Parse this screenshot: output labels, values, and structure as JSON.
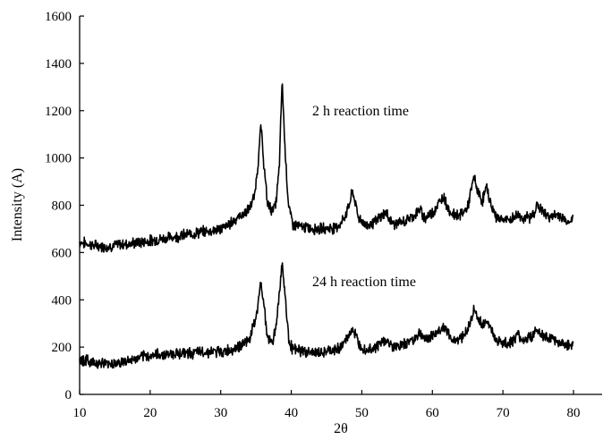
{
  "chart_data": {
    "type": "line",
    "xlabel": "2θ",
    "ylabel": "Intensity (A)",
    "xlim": [
      10,
      84
    ],
    "ylim": [
      0,
      1600
    ],
    "x_ticks": [
      10,
      20,
      30,
      40,
      50,
      60,
      70,
      80
    ],
    "y_ticks": [
      0,
      200,
      400,
      600,
      800,
      1000,
      1200,
      1400,
      1600
    ],
    "grid": false,
    "legend": "none",
    "line_color": "#000000",
    "annotations": [
      {
        "text": "2 h reaction time",
        "x": 53,
        "y": 1180
      },
      {
        "text": "24 h reaction time",
        "x": 53,
        "y": 480
      }
    ],
    "series": [
      {
        "x": [
          10,
          12,
          14,
          16,
          18,
          20,
          22,
          24,
          26,
          28,
          30,
          31,
          32,
          33,
          34,
          34.8,
          35.3,
          35.7,
          36.1,
          36.6,
          37.2,
          37.8,
          38.3,
          38.7,
          39.1,
          39.6,
          40.2,
          41,
          42,
          44,
          46,
          47,
          48,
          48.7,
          49.5,
          50.5,
          52,
          53.3,
          54.5,
          56,
          57.5,
          58.2,
          59,
          60,
          61,
          61.6,
          62.3,
          63,
          64,
          65,
          65.9,
          66.5,
          67.1,
          67.7,
          68.2,
          69,
          70,
          71,
          72,
          73,
          74,
          74.9,
          76,
          77,
          78,
          79,
          80
        ],
        "values": [
          645,
          630,
          625,
          635,
          640,
          650,
          660,
          670,
          680,
          690,
          700,
          715,
          740,
          760,
          780,
          840,
          980,
          1140,
          980,
          810,
          780,
          800,
          960,
          1330,
          1050,
          800,
          720,
          710,
          705,
          700,
          705,
          720,
          780,
          860,
          750,
          715,
          730,
          770,
          720,
          730,
          760,
          780,
          745,
          770,
          810,
          840,
          780,
          760,
          760,
          790,
          920,
          850,
          820,
          880,
          810,
          750,
          740,
          735,
          760,
          745,
          750,
          800,
          760,
          750,
          760,
          730,
          740
        ]
      },
      {
        "x": [
          10,
          12,
          14,
          16,
          18,
          20,
          22,
          24,
          26,
          28,
          30,
          31,
          32,
          33,
          34,
          34.8,
          35.3,
          35.7,
          36.1,
          36.6,
          37.2,
          37.8,
          38.3,
          38.7,
          39.1,
          39.6,
          40.2,
          41,
          42,
          44,
          46,
          47,
          48,
          48.7,
          49.5,
          50.5,
          52,
          53.3,
          54.5,
          56,
          57.5,
          58.2,
          59,
          60,
          61,
          61.6,
          62.3,
          63,
          64,
          65,
          65.9,
          66.5,
          67.1,
          67.7,
          68.2,
          69,
          70,
          71,
          72,
          73,
          74,
          74.9,
          76,
          77,
          78,
          79,
          80
        ],
        "values": [
          150,
          135,
          130,
          135,
          150,
          165,
          170,
          175,
          175,
          180,
          180,
          185,
          195,
          210,
          230,
          300,
          380,
          470,
          390,
          240,
          220,
          270,
          430,
          560,
          430,
          240,
          190,
          185,
          180,
          175,
          185,
          200,
          240,
          280,
          220,
          190,
          200,
          230,
          200,
          210,
          240,
          260,
          230,
          250,
          270,
          290,
          250,
          230,
          240,
          270,
          360,
          320,
          290,
          320,
          280,
          230,
          220,
          215,
          250,
          230,
          245,
          270,
          240,
          230,
          220,
          210,
          215
        ]
      }
    ]
  }
}
